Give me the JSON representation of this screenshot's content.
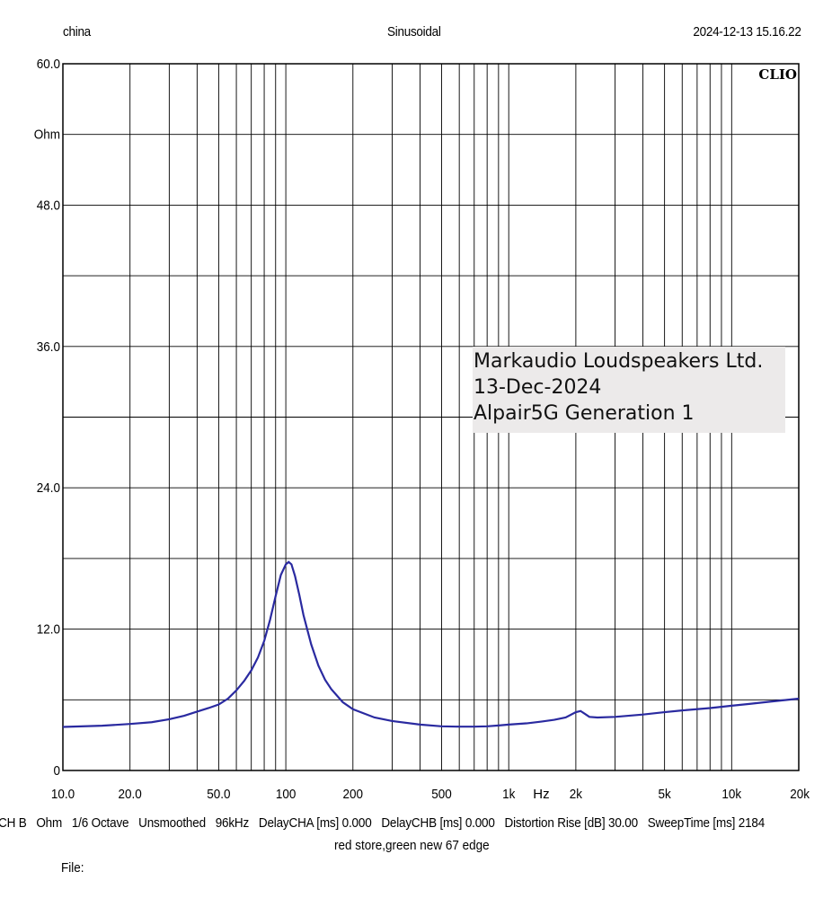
{
  "header": {
    "left": "china",
    "center": "Sinusoidal",
    "right": "2024-12-13 15.16.22",
    "logo": "CLIO"
  },
  "annotation": {
    "line1": "Markaudio Loudspeakers Ltd.",
    "line2": "13-Dec-2024",
    "line3": "Alpair5G Generation 1"
  },
  "footer": {
    "items": [
      "CH B",
      "Ohm",
      "1/6 Octave",
      "Unsmoothed",
      "96kHz",
      "DelayCHA [ms] 0.000",
      "DelayCHB [ms] 0.000",
      "Distortion Rise [dB] 30.00",
      "SweepTime [ms] 2184"
    ],
    "note": "red store,green new 67 edge",
    "file_label": "File:"
  },
  "colors": {
    "curve": "#2a2aa0",
    "grid": "#000000",
    "annotation_bg": "#eceaea"
  },
  "chart_data": {
    "type": "line",
    "x_scale": "log",
    "xlim": [
      10,
      20000
    ],
    "ylim": [
      0,
      60
    ],
    "y_ticks": [
      {
        "value": 0,
        "label": "0"
      },
      {
        "value": 12,
        "label": "12.0"
      },
      {
        "value": 24,
        "label": "24.0"
      },
      {
        "value": 36,
        "label": "36.0"
      },
      {
        "value": 48,
        "label": "48.0"
      },
      {
        "value": 60,
        "label": "60.0"
      }
    ],
    "y_unit_label": {
      "value": 54,
      "label": "Ohm"
    },
    "x_ticks": [
      {
        "value": 10,
        "label": "10.0"
      },
      {
        "value": 20,
        "label": "20.0"
      },
      {
        "value": 50,
        "label": "50.0"
      },
      {
        "value": 100,
        "label": "100"
      },
      {
        "value": 200,
        "label": "200"
      },
      {
        "value": 500,
        "label": "500"
      },
      {
        "value": 1000,
        "label": "1k"
      },
      {
        "value": 2000,
        "label": "2k"
      },
      {
        "value": 5000,
        "label": "5k"
      },
      {
        "value": 10000,
        "label": "10k"
      },
      {
        "value": 20000,
        "label": "20k"
      }
    ],
    "x_unit_label": {
      "value": 1400,
      "label": "Hz"
    },
    "grid": true,
    "series": [
      {
        "x": [
          10,
          15,
          20,
          25,
          30,
          35,
          40,
          45,
          50,
          55,
          60,
          65,
          70,
          75,
          80,
          85,
          90,
          95,
          100,
          103,
          106,
          110,
          115,
          120,
          130,
          140,
          150,
          160,
          180,
          200,
          250,
          300,
          400,
          500,
          600,
          700,
          800,
          900,
          1000,
          1200,
          1400,
          1600,
          1800,
          2000,
          2100,
          2200,
          2300,
          2500,
          3000,
          4000,
          5000,
          6000,
          8000,
          10000,
          12000,
          15000,
          20000
        ],
        "y": [
          3.7,
          3.8,
          3.95,
          4.1,
          4.35,
          4.65,
          5.0,
          5.3,
          5.6,
          6.1,
          6.8,
          7.6,
          8.5,
          9.6,
          11.0,
          12.8,
          14.8,
          16.6,
          17.5,
          17.7,
          17.5,
          16.5,
          14.9,
          13.2,
          10.7,
          8.9,
          7.7,
          6.9,
          5.8,
          5.2,
          4.5,
          4.2,
          3.9,
          3.75,
          3.72,
          3.72,
          3.75,
          3.82,
          3.9,
          4.0,
          4.15,
          4.3,
          4.5,
          4.95,
          5.05,
          4.8,
          4.55,
          4.5,
          4.55,
          4.75,
          4.95,
          5.1,
          5.3,
          5.5,
          5.65,
          5.85,
          6.1
        ]
      }
    ]
  }
}
